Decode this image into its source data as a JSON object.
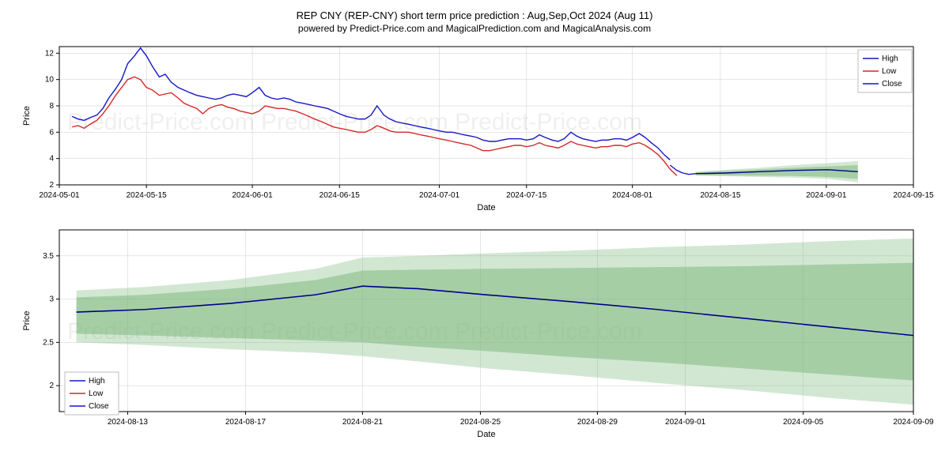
{
  "title_main": "REP CNY (REP-CNY) short term price prediction : Aug,Sep,Oct 2024 (Aug 11)",
  "title_sub": "powered by Predict-Price.com and MagicalPrediction.com and MagicalAnalysis.com",
  "watermark_text": "Predict-Price.com    Predict-Price.com    Predict-Price.com",
  "chart1": {
    "type": "line",
    "ylabel": "Price",
    "xlabel": "Date",
    "ylim": [
      2,
      12.5
    ],
    "yticks": [
      2,
      4,
      6,
      8,
      10,
      12
    ],
    "xticks": [
      "2024-05-01",
      "2024-05-15",
      "2024-06-01",
      "2024-06-15",
      "2024-07-01",
      "2024-07-15",
      "2024-08-01",
      "2024-08-15",
      "2024-09-01",
      "2024-09-15"
    ],
    "xtick_positions": [
      0,
      0.102,
      0.226,
      0.328,
      0.445,
      0.547,
      0.671,
      0.774,
      0.898,
      1.0
    ],
    "legend_items": [
      "High",
      "Low",
      "Close"
    ],
    "legend_colors": [
      "#1616c7",
      "#d62728",
      "#1616c7"
    ],
    "background_color": "#ffffff",
    "grid_color": "#cccccc",
    "title_fontsize": 13,
    "label_fontsize": 11,
    "tick_fontsize": 10,
    "line_width": 1.4,
    "prediction_band_color": "#7fb97f",
    "prediction_band_opacity_outer": 0.35,
    "prediction_band_opacity_inner": 0.55,
    "series_high": {
      "color": "#1616c7",
      "x": [
        0.015,
        0.022,
        0.029,
        0.036,
        0.044,
        0.051,
        0.058,
        0.066,
        0.073,
        0.08,
        0.088,
        0.095,
        0.102,
        0.109,
        0.117,
        0.124,
        0.131,
        0.139,
        0.146,
        0.153,
        0.161,
        0.168,
        0.175,
        0.183,
        0.19,
        0.197,
        0.204,
        0.212,
        0.219,
        0.226,
        0.234,
        0.241,
        0.248,
        0.255,
        0.263,
        0.27,
        0.277,
        0.285,
        0.292,
        0.299,
        0.307,
        0.314,
        0.321,
        0.328,
        0.336,
        0.343,
        0.35,
        0.358,
        0.365,
        0.372,
        0.38,
        0.387,
        0.394,
        0.401,
        0.409,
        0.416,
        0.423,
        0.431,
        0.438,
        0.445,
        0.453,
        0.46,
        0.467,
        0.474,
        0.482,
        0.489,
        0.496,
        0.504,
        0.511,
        0.518,
        0.526,
        0.533,
        0.54,
        0.547,
        0.555,
        0.562,
        0.569,
        0.577,
        0.584,
        0.591,
        0.599,
        0.606,
        0.613,
        0.62,
        0.628,
        0.635,
        0.642,
        0.65,
        0.657,
        0.664,
        0.671,
        0.679,
        0.686,
        0.693,
        0.701,
        0.708,
        0.715
      ],
      "y": [
        7.2,
        7.0,
        6.9,
        7.1,
        7.3,
        7.8,
        8.6,
        9.3,
        10.0,
        11.2,
        11.8,
        12.4,
        11.8,
        11.0,
        10.2,
        10.4,
        9.8,
        9.4,
        9.2,
        9.0,
        8.8,
        8.7,
        8.6,
        8.5,
        8.6,
        8.8,
        8.9,
        8.8,
        8.7,
        9.0,
        9.4,
        8.8,
        8.6,
        8.5,
        8.6,
        8.5,
        8.3,
        8.2,
        8.1,
        8.0,
        7.9,
        7.8,
        7.6,
        7.4,
        7.2,
        7.1,
        7.0,
        7.0,
        7.3,
        8.0,
        7.3,
        7.0,
        6.8,
        6.7,
        6.6,
        6.5,
        6.4,
        6.3,
        6.2,
        6.1,
        6.0,
        6.0,
        5.9,
        5.8,
        5.7,
        5.6,
        5.4,
        5.3,
        5.3,
        5.4,
        5.5,
        5.5,
        5.5,
        5.4,
        5.5,
        5.8,
        5.6,
        5.4,
        5.3,
        5.5,
        6.0,
        5.7,
        5.5,
        5.4,
        5.3,
        5.4,
        5.4,
        5.5,
        5.5,
        5.4,
        5.6,
        5.9,
        5.6,
        5.2,
        4.8,
        4.3,
        3.9
      ]
    },
    "series_low": {
      "color": "#d62728",
      "x": [
        0.015,
        0.022,
        0.029,
        0.036,
        0.044,
        0.051,
        0.058,
        0.066,
        0.073,
        0.08,
        0.088,
        0.095,
        0.102,
        0.109,
        0.117,
        0.124,
        0.131,
        0.139,
        0.146,
        0.153,
        0.161,
        0.168,
        0.175,
        0.183,
        0.19,
        0.197,
        0.204,
        0.212,
        0.219,
        0.226,
        0.234,
        0.241,
        0.248,
        0.255,
        0.263,
        0.27,
        0.277,
        0.285,
        0.292,
        0.299,
        0.307,
        0.314,
        0.321,
        0.328,
        0.336,
        0.343,
        0.35,
        0.358,
        0.365,
        0.372,
        0.38,
        0.387,
        0.394,
        0.401,
        0.409,
        0.416,
        0.423,
        0.431,
        0.438,
        0.445,
        0.453,
        0.46,
        0.467,
        0.474,
        0.482,
        0.489,
        0.496,
        0.504,
        0.511,
        0.518,
        0.526,
        0.533,
        0.54,
        0.547,
        0.555,
        0.562,
        0.569,
        0.577,
        0.584,
        0.591,
        0.599,
        0.606,
        0.613,
        0.62,
        0.628,
        0.635,
        0.642,
        0.65,
        0.657,
        0.664,
        0.671,
        0.679,
        0.686,
        0.693,
        0.701,
        0.708,
        0.715,
        0.723
      ],
      "y": [
        6.4,
        6.5,
        6.3,
        6.6,
        6.9,
        7.4,
        8.0,
        8.8,
        9.4,
        10.0,
        10.2,
        10.0,
        9.4,
        9.2,
        8.8,
        8.9,
        9.0,
        8.6,
        8.2,
        8.0,
        7.8,
        7.4,
        7.8,
        8.0,
        8.1,
        7.9,
        7.8,
        7.6,
        7.5,
        7.4,
        7.6,
        8.0,
        7.9,
        7.8,
        7.8,
        7.7,
        7.6,
        7.4,
        7.2,
        7.0,
        6.8,
        6.6,
        6.4,
        6.3,
        6.2,
        6.1,
        6.0,
        6.0,
        6.2,
        6.5,
        6.3,
        6.1,
        6.0,
        6.0,
        6.0,
        5.9,
        5.8,
        5.7,
        5.6,
        5.5,
        5.4,
        5.3,
        5.2,
        5.1,
        5.0,
        4.8,
        4.6,
        4.6,
        4.7,
        4.8,
        4.9,
        5.0,
        5.0,
        4.9,
        5.0,
        5.2,
        5.0,
        4.9,
        4.8,
        5.0,
        5.3,
        5.1,
        5.0,
        4.9,
        4.8,
        4.9,
        4.9,
        5.0,
        5.0,
        4.9,
        5.1,
        5.2,
        5.0,
        4.7,
        4.3,
        3.8,
        3.2,
        2.7
      ]
    },
    "series_close": {
      "color": "#1616c7",
      "x": [
        0.715,
        0.723,
        0.73,
        0.737,
        0.745
      ],
      "y": [
        3.5,
        3.1,
        2.9,
        2.8,
        2.85
      ]
    },
    "prediction_center": {
      "color": "#00008b",
      "x": [
        0.745,
        0.78,
        0.82,
        0.86,
        0.9,
        0.935
      ],
      "y": [
        2.85,
        2.9,
        3.0,
        3.1,
        3.15,
        3.0
      ]
    },
    "prediction_band_outer": {
      "x": [
        0.745,
        0.78,
        0.82,
        0.86,
        0.9,
        0.935
      ],
      "y_upper": [
        3.0,
        3.15,
        3.3,
        3.5,
        3.65,
        3.8
      ],
      "y_lower": [
        2.7,
        2.65,
        2.6,
        2.55,
        2.45,
        2.2
      ]
    },
    "prediction_band_inner": {
      "x": [
        0.745,
        0.78,
        0.82,
        0.86,
        0.9,
        0.935
      ],
      "y_upper": [
        2.95,
        3.05,
        3.18,
        3.3,
        3.4,
        3.5
      ],
      "y_lower": [
        2.75,
        2.72,
        2.7,
        2.68,
        2.6,
        2.45
      ]
    }
  },
  "chart2": {
    "type": "line",
    "ylabel": "Price",
    "xlabel": "Date",
    "ylim": [
      1.7,
      3.8
    ],
    "yticks": [
      2.0,
      2.5,
      3.0,
      3.5
    ],
    "xticks": [
      "2024-08-13",
      "2024-08-17",
      "2024-08-21",
      "2024-08-25",
      "2024-08-29",
      "2024-09-01",
      "2024-09-05",
      "2024-09-09"
    ],
    "xtick_positions": [
      0.08,
      0.218,
      0.355,
      0.493,
      0.63,
      0.733,
      0.871,
      1.0
    ],
    "legend_items": [
      "High",
      "Low",
      "Close"
    ],
    "legend_colors": [
      "#1616c7",
      "#d62728",
      "#1616c7"
    ],
    "background_color": "#ffffff",
    "grid_color": "#cccccc",
    "title_fontsize": 13,
    "label_fontsize": 11,
    "tick_fontsize": 10,
    "line_width": 1.6,
    "prediction_band_color": "#7fb97f",
    "prediction_band_opacity_outer": 0.35,
    "prediction_band_opacity_inner": 0.55,
    "prediction_center": {
      "color": "#00008b",
      "x": [
        0.02,
        0.1,
        0.2,
        0.3,
        0.355,
        0.42,
        0.5,
        0.6,
        0.7,
        0.8,
        0.9,
        1.0
      ],
      "y": [
        2.85,
        2.88,
        2.95,
        3.05,
        3.15,
        3.12,
        3.05,
        2.97,
        2.88,
        2.78,
        2.68,
        2.58
      ]
    },
    "prediction_band_outer": {
      "x": [
        0.02,
        0.1,
        0.2,
        0.3,
        0.355,
        0.42,
        0.5,
        0.6,
        0.7,
        0.8,
        0.9,
        1.0
      ],
      "y_upper": [
        3.1,
        3.14,
        3.22,
        3.35,
        3.48,
        3.5,
        3.53,
        3.56,
        3.6,
        3.63,
        3.67,
        3.7
      ],
      "y_lower": [
        2.5,
        2.47,
        2.42,
        2.38,
        2.34,
        2.28,
        2.2,
        2.12,
        2.03,
        1.95,
        1.86,
        1.78
      ]
    },
    "prediction_band_inner": {
      "x": [
        0.02,
        0.1,
        0.2,
        0.3,
        0.355,
        0.42,
        0.5,
        0.6,
        0.7,
        0.8,
        0.9,
        1.0
      ],
      "y_upper": [
        3.02,
        3.05,
        3.12,
        3.22,
        3.33,
        3.34,
        3.35,
        3.36,
        3.37,
        3.38,
        3.4,
        3.42
      ],
      "y_lower": [
        2.6,
        2.58,
        2.55,
        2.52,
        2.5,
        2.45,
        2.4,
        2.33,
        2.27,
        2.2,
        2.13,
        2.06
      ]
    }
  }
}
